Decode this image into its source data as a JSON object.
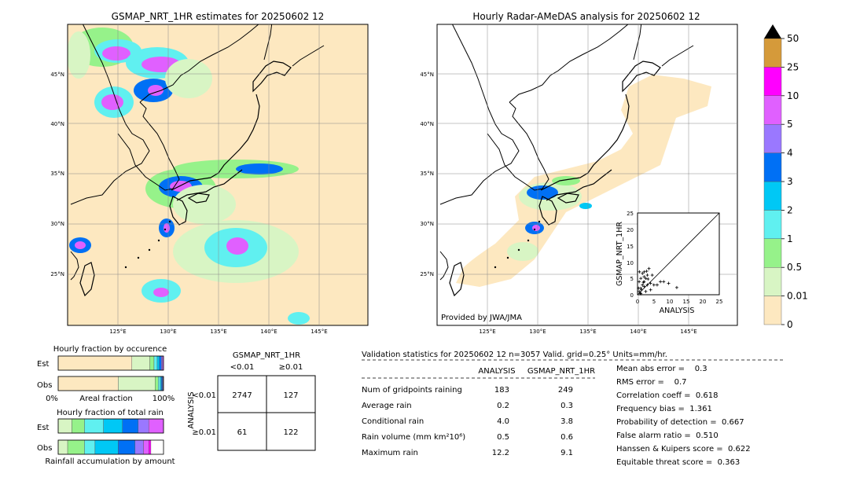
{
  "colors": {
    "ocean": "#fde8c0",
    "land_bg": "#ffffff",
    "levels": [
      "#fde8c0",
      "#d8f5c4",
      "#96f28a",
      "#60f0f0",
      "#00c8f5",
      "#0070f5",
      "#9a78ff",
      "#e060ff",
      "#ff00ff",
      "#d59a3a",
      "#000000"
    ]
  },
  "map_left": {
    "title": "GSMAP_NRT_1HR estimates for 20250602 12",
    "lat_labels": [
      "45°N",
      "40°N",
      "35°N",
      "30°N",
      "25°N"
    ],
    "lon_labels": [
      "125°E",
      "130°E",
      "135°E",
      "140°E",
      "145°E"
    ]
  },
  "map_right": {
    "title": "Hourly Radar-AMeDAS analysis for 20250602 12",
    "lat_labels": [
      "45°N",
      "40°N",
      "35°N",
      "30°N",
      "25°N"
    ],
    "lon_labels": [
      "125°E",
      "130°E",
      "135°E",
      "140°E",
      "145°E"
    ],
    "credit": "Provided by JWA/JMA"
  },
  "colorbar": {
    "labels": [
      "0",
      "0.01",
      "0.5",
      "1",
      "2",
      "3",
      "4",
      "5",
      "10",
      "25",
      "50"
    ]
  },
  "chart_data": [
    {
      "type": "scatter",
      "xlabel": "ANALYSIS",
      "ylabel": "GSMAP_NRT_1HR",
      "xlim": [
        0,
        25
      ],
      "ylim": [
        0,
        25
      ],
      "ticks": [
        "0",
        "5",
        "10",
        "15",
        "20",
        "25"
      ],
      "points": [
        [
          0.5,
          1
        ],
        [
          1,
          2
        ],
        [
          1.5,
          3
        ],
        [
          2,
          4
        ],
        [
          2.5,
          5
        ],
        [
          3,
          6
        ],
        [
          1,
          5
        ],
        [
          2,
          7
        ],
        [
          0.8,
          0.5
        ],
        [
          1.2,
          1.5
        ],
        [
          2,
          2.5
        ],
        [
          3,
          3
        ],
        [
          4,
          3.5
        ],
        [
          5,
          3
        ],
        [
          6,
          3
        ],
        [
          7,
          4
        ],
        [
          8,
          4
        ],
        [
          9.5,
          3.5
        ],
        [
          12,
          2.2
        ],
        [
          3.5,
          8
        ],
        [
          1.5,
          6.5
        ],
        [
          0.5,
          4
        ],
        [
          2.5,
          1
        ],
        [
          1,
          0.3
        ],
        [
          4,
          1.5
        ],
        [
          0.3,
          2
        ],
        [
          2,
          5.5
        ],
        [
          1.8,
          3.8
        ],
        [
          3.2,
          4.8
        ],
        [
          0.6,
          7
        ],
        [
          2.8,
          7.2
        ],
        [
          4.5,
          6
        ]
      ]
    },
    {
      "type": "bar",
      "title": "Hourly fraction by occurence",
      "rows": [
        "Est",
        "Obs"
      ],
      "xlabel": "Areal fraction",
      "x_ticks": [
        "0%",
        "100%"
      ],
      "est_fractions": [
        0.7,
        0.17,
        0.04,
        0.03,
        0.02,
        0.02,
        0.01,
        0.01
      ],
      "obs_fractions": [
        0.57,
        0.35,
        0.03,
        0.02,
        0.01,
        0.01,
        0.005,
        0.005
      ]
    },
    {
      "type": "bar",
      "title": "Hourly fraction of total rain",
      "rows": [
        "Est",
        "Obs"
      ],
      "xlabel": "Rainfall accumulation by amount",
      "est_fractions": [
        0.13,
        0.12,
        0.18,
        0.18,
        0.15,
        0.1,
        0.14
      ],
      "obs_fractions": [
        0.09,
        0.16,
        0.1,
        0.22,
        0.16,
        0.08,
        0.05,
        0.02
      ]
    },
    {
      "type": "table",
      "title": "GSMAP_NRT_1HR",
      "col_labels": [
        "<0.01",
        "≥0.01"
      ],
      "row_axis_label": "ANALYSIS",
      "row_labels": [
        "<0.01",
        "≥0.01"
      ],
      "cells": [
        [
          "2747",
          "127"
        ],
        [
          "61",
          "122"
        ]
      ]
    }
  ],
  "validation": {
    "header": "Validation statistics for 20250602 12  n=3057 Valid. grid=0.25° Units=mm/hr.",
    "col_analysis": "ANALYSIS",
    "col_gsmap": "GSMAP_NRT_1HR",
    "rows": [
      {
        "label": "Num of gridpoints raining",
        "analysis": "183",
        "gsmap": "249"
      },
      {
        "label": "Average rain",
        "analysis": "0.2",
        "gsmap": "0.3"
      },
      {
        "label": "Conditional rain",
        "analysis": "4.0",
        "gsmap": "3.8"
      },
      {
        "label": "Rain volume (mm km²10⁶)",
        "analysis": "0.5",
        "gsmap": "0.6"
      },
      {
        "label": "Maximum rain",
        "analysis": "12.2",
        "gsmap": "9.1"
      }
    ],
    "scores": [
      "Mean abs error =    0.3",
      "RMS error =    0.7",
      "Correlation coeff =  0.618",
      "Frequency bias =  1.361",
      "Probability of detection =  0.667",
      "False alarm ratio =  0.510",
      "Hanssen & Kuipers score =  0.622",
      "Equitable threat score =  0.363"
    ]
  }
}
